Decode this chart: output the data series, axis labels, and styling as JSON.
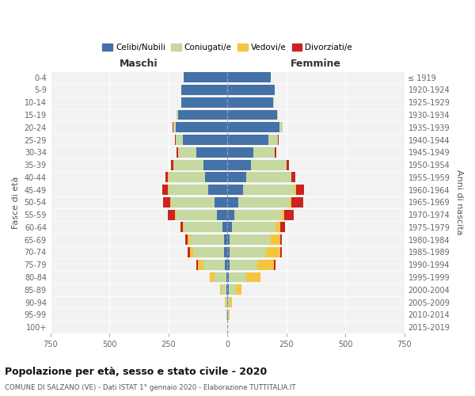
{
  "age_groups": [
    "0-4",
    "5-9",
    "10-14",
    "15-19",
    "20-24",
    "25-29",
    "30-34",
    "35-39",
    "40-44",
    "45-49",
    "50-54",
    "55-59",
    "60-64",
    "65-69",
    "70-74",
    "75-79",
    "80-84",
    "85-89",
    "90-94",
    "95-99",
    "100+"
  ],
  "birth_years": [
    "2015-2019",
    "2010-2014",
    "2005-2009",
    "2000-2004",
    "1995-1999",
    "1990-1994",
    "1985-1989",
    "1980-1984",
    "1975-1979",
    "1970-1974",
    "1965-1969",
    "1960-1964",
    "1955-1959",
    "1950-1954",
    "1945-1949",
    "1940-1944",
    "1935-1939",
    "1930-1934",
    "1925-1929",
    "1920-1924",
    "≤ 1919"
  ],
  "male_celibe": [
    185,
    195,
    195,
    210,
    220,
    190,
    130,
    100,
    95,
    80,
    55,
    45,
    20,
    15,
    15,
    10,
    5,
    3,
    2,
    2,
    1
  ],
  "male_coniugato": [
    0,
    0,
    2,
    5,
    10,
    30,
    80,
    130,
    155,
    170,
    185,
    175,
    165,
    145,
    130,
    90,
    50,
    20,
    5,
    2,
    0
  ],
  "male_vedovo": [
    0,
    0,
    0,
    0,
    0,
    0,
    0,
    0,
    1,
    2,
    2,
    3,
    5,
    10,
    15,
    25,
    20,
    8,
    3,
    0,
    0
  ],
  "male_divorziato": [
    0,
    0,
    0,
    0,
    1,
    2,
    5,
    8,
    10,
    25,
    30,
    30,
    10,
    8,
    10,
    5,
    0,
    0,
    0,
    0,
    0
  ],
  "female_nubile": [
    185,
    200,
    195,
    210,
    220,
    175,
    110,
    100,
    80,
    65,
    45,
    30,
    20,
    10,
    10,
    8,
    5,
    5,
    3,
    3,
    1
  ],
  "female_coniugata": [
    0,
    0,
    2,
    5,
    15,
    40,
    90,
    150,
    190,
    220,
    220,
    200,
    185,
    175,
    155,
    120,
    75,
    30,
    8,
    3,
    0
  ],
  "female_vedova": [
    0,
    0,
    0,
    0,
    0,
    0,
    1,
    2,
    2,
    5,
    5,
    10,
    20,
    40,
    60,
    70,
    60,
    25,
    10,
    2,
    0
  ],
  "female_divorziata": [
    0,
    0,
    0,
    0,
    1,
    2,
    5,
    10,
    15,
    35,
    50,
    40,
    20,
    5,
    5,
    5,
    0,
    0,
    0,
    0,
    0
  ],
  "color_celibe": "#4472a8",
  "color_coniugato": "#c5d9a0",
  "color_vedovo": "#f5c540",
  "color_divorziato": "#cc2222",
  "xlim": 750,
  "xticks": [
    -750,
    -500,
    -250,
    0,
    250,
    500,
    750
  ],
  "xtick_labels": [
    "750",
    "500",
    "250",
    "0",
    "250",
    "500",
    "750"
  ],
  "title": "Popolazione per età, sesso e stato civile - 2020",
  "subtitle": "COMUNE DI SALZANO (VE) - Dati ISTAT 1° gennaio 2020 - Elaborazione TUTTITALIA.IT",
  "label_maschi": "Maschi",
  "label_femmine": "Femmine",
  "ylabel_left": "Fasce di età",
  "ylabel_right": "Anni di nascita",
  "legend_labels": [
    "Celibi/Nubili",
    "Coniugati/e",
    "Vedovi/e",
    "Divorziati/e"
  ],
  "bg_color": "#ffffff",
  "plot_bg_color": "#f2f2f2"
}
